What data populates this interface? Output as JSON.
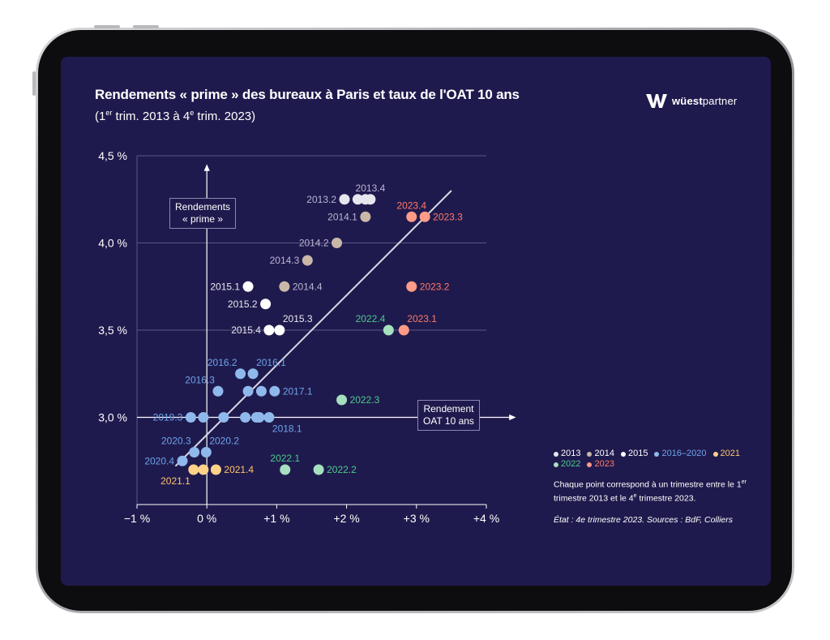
{
  "header": {
    "title": "Rendements « prime » des bureaux à Paris et taux de l'OAT 10 ans",
    "subtitle_prefix": "(1",
    "subtitle_sup1": "er",
    "subtitle_mid": " trim. 2013 à 4",
    "subtitle_sup2": "e",
    "subtitle_suffix": " trim. 2023)"
  },
  "brand": {
    "name": "wüestpartner",
    "icon": "wp-logo-icon"
  },
  "legend": {
    "items": [
      {
        "label": "2013",
        "color": "#e6e6ee"
      },
      {
        "label": "2014",
        "color": "#c9b8a8"
      },
      {
        "label": "2015",
        "color": "#ffffff"
      },
      {
        "label": "2016–2020",
        "color": "#8fb9ec"
      },
      {
        "label": "2021",
        "color": "#ffd28a"
      },
      {
        "label": "2022",
        "color": "#a6e0bf"
      },
      {
        "label": "2023",
        "color": "#ff9b86"
      }
    ],
    "note_part1": "Chaque point correspond à un trimestre entre le 1",
    "note_sup1": "er",
    "note_part2": " trimestre 2013 et le 4",
    "note_sup2": "e",
    "note_part3": " trimestre 2023.",
    "source": "État : 4e trimestre 2023. Sources : BdF, Colliers"
  },
  "axis_boxes": {
    "y_line1": "Rendements",
    "y_line2": "« prime »",
    "x_line1": "Rendement",
    "x_line2": "OAT 10 ans"
  },
  "chart_data": {
    "type": "scatter",
    "x_range": [
      -1,
      4
    ],
    "y_range": [
      2.5,
      4.5
    ],
    "x_ticks": [
      -1,
      0,
      1,
      2,
      3,
      4
    ],
    "x_tick_labels": [
      "−1 %",
      "0 %",
      "+1 %",
      "+2 %",
      "+3 %",
      "+4 %"
    ],
    "y_ticks": [
      3.0,
      3.5,
      4.0,
      4.5
    ],
    "y_tick_labels": [
      "3,0 %",
      "3,5 %",
      "4,0 %",
      "4,5 %"
    ],
    "grid": "horizontal",
    "trend_line": [
      [
        -0.45,
        2.72
      ],
      [
        3.5,
        4.3
      ]
    ],
    "group_colors": {
      "2013": "#e6e6ee",
      "2014": "#c9b8a8",
      "2015": "#ffffff",
      "2016-2020": "#8fb9ec",
      "2021": "#ffd28a",
      "2022": "#a6e0bf",
      "2023": "#ff9b86"
    },
    "label_colors": {
      "2013": "#b9b6d3",
      "2014": "#b9b6d3",
      "2015": "#e8e8f0",
      "2016-2020": "#6ea4ea",
      "2021": "#ffc46a",
      "2022": "#4cc98e",
      "2023": "#ff7a68"
    },
    "points": [
      {
        "x": 1.97,
        "y": 4.25,
        "g": "2013",
        "label": "2013.2",
        "pos": "left"
      },
      {
        "x": 2.16,
        "y": 4.25,
        "g": "2013",
        "label": "",
        "pos": ""
      },
      {
        "x": 2.27,
        "y": 4.25,
        "g": "2013",
        "label": "",
        "pos": ""
      },
      {
        "x": 2.34,
        "y": 4.25,
        "g": "2013",
        "label": "2013.4",
        "pos": "above"
      },
      {
        "x": 2.27,
        "y": 4.15,
        "g": "2014",
        "label": "2014.1",
        "pos": "left"
      },
      {
        "x": 1.86,
        "y": 4.0,
        "g": "2014",
        "label": "2014.2",
        "pos": "left"
      },
      {
        "x": 1.44,
        "y": 3.9,
        "g": "2014",
        "label": "2014.3",
        "pos": "left"
      },
      {
        "x": 1.11,
        "y": 3.75,
        "g": "2014",
        "label": "2014.4",
        "pos": "right"
      },
      {
        "x": 0.59,
        "y": 3.75,
        "g": "2015",
        "label": "2015.1",
        "pos": "left"
      },
      {
        "x": 0.84,
        "y": 3.65,
        "g": "2015",
        "label": "2015.2",
        "pos": "left"
      },
      {
        "x": 0.89,
        "y": 3.5,
        "g": "2015",
        "label": "2015.4",
        "pos": "left"
      },
      {
        "x": 1.04,
        "y": 3.5,
        "g": "2015",
        "label": "2015.3",
        "pos": "aboveright"
      },
      {
        "x": 0.48,
        "y": 3.25,
        "g": "2016-2020",
        "label": "2016.2",
        "pos": "aboveleft"
      },
      {
        "x": 0.66,
        "y": 3.25,
        "g": "2016-2020",
        "label": "2016.1",
        "pos": "aboveright"
      },
      {
        "x": 0.16,
        "y": 3.15,
        "g": "2016-2020",
        "label": "2016.3",
        "pos": "aboveleft"
      },
      {
        "x": 0.59,
        "y": 3.15,
        "g": "2016-2020",
        "label": "",
        "pos": ""
      },
      {
        "x": 0.78,
        "y": 3.15,
        "g": "2016-2020",
        "label": "",
        "pos": ""
      },
      {
        "x": 0.97,
        "y": 3.15,
        "g": "2016-2020",
        "label": "2017.1",
        "pos": "right"
      },
      {
        "x": -0.23,
        "y": 3.0,
        "g": "2016-2020",
        "label": "2019.3",
        "pos": "left"
      },
      {
        "x": -0.05,
        "y": 3.0,
        "g": "2016-2020",
        "label": "",
        "pos": ""
      },
      {
        "x": 0.24,
        "y": 3.0,
        "g": "2016-2020",
        "label": "",
        "pos": ""
      },
      {
        "x": 0.55,
        "y": 3.0,
        "g": "2016-2020",
        "label": "",
        "pos": ""
      },
      {
        "x": 0.71,
        "y": 3.0,
        "g": "2016-2020",
        "label": "",
        "pos": ""
      },
      {
        "x": 0.75,
        "y": 3.0,
        "g": "2016-2020",
        "label": "",
        "pos": ""
      },
      {
        "x": 0.89,
        "y": 3.0,
        "g": "2016-2020",
        "label": "2018.1",
        "pos": "belowright"
      },
      {
        "x": -0.18,
        "y": 2.8,
        "g": "2016-2020",
        "label": "2020.3",
        "pos": "aboveleft"
      },
      {
        "x": -0.01,
        "y": 2.8,
        "g": "2016-2020",
        "label": "2020.2",
        "pos": "aboveright"
      },
      {
        "x": -0.35,
        "y": 2.75,
        "g": "2016-2020",
        "label": "2020.4",
        "pos": "left"
      },
      {
        "x": -0.19,
        "y": 2.7,
        "g": "2021",
        "label": "2021.1",
        "pos": "belowleft"
      },
      {
        "x": -0.05,
        "y": 2.7,
        "g": "2021",
        "label": "",
        "pos": ""
      },
      {
        "x": 0.13,
        "y": 2.7,
        "g": "2021",
        "label": "2021.4",
        "pos": "right"
      },
      {
        "x": 1.12,
        "y": 2.7,
        "g": "2022",
        "label": "2022.1",
        "pos": "above"
      },
      {
        "x": 1.6,
        "y": 2.7,
        "g": "2022",
        "label": "2022.2",
        "pos": "right"
      },
      {
        "x": 1.93,
        "y": 3.1,
        "g": "2022",
        "label": "2022.3",
        "pos": "right"
      },
      {
        "x": 2.6,
        "y": 3.5,
        "g": "2022",
        "label": "2022.4",
        "pos": "aboveleft"
      },
      {
        "x": 2.82,
        "y": 3.5,
        "g": "2023",
        "label": "2023.1",
        "pos": "aboveright"
      },
      {
        "x": 2.93,
        "y": 3.75,
        "g": "2023",
        "label": "2023.2",
        "pos": "right"
      },
      {
        "x": 3.12,
        "y": 4.15,
        "g": "2023",
        "label": "2023.3",
        "pos": "right"
      },
      {
        "x": 2.93,
        "y": 4.15,
        "g": "2023",
        "label": "2023.4",
        "pos": "above"
      }
    ]
  }
}
